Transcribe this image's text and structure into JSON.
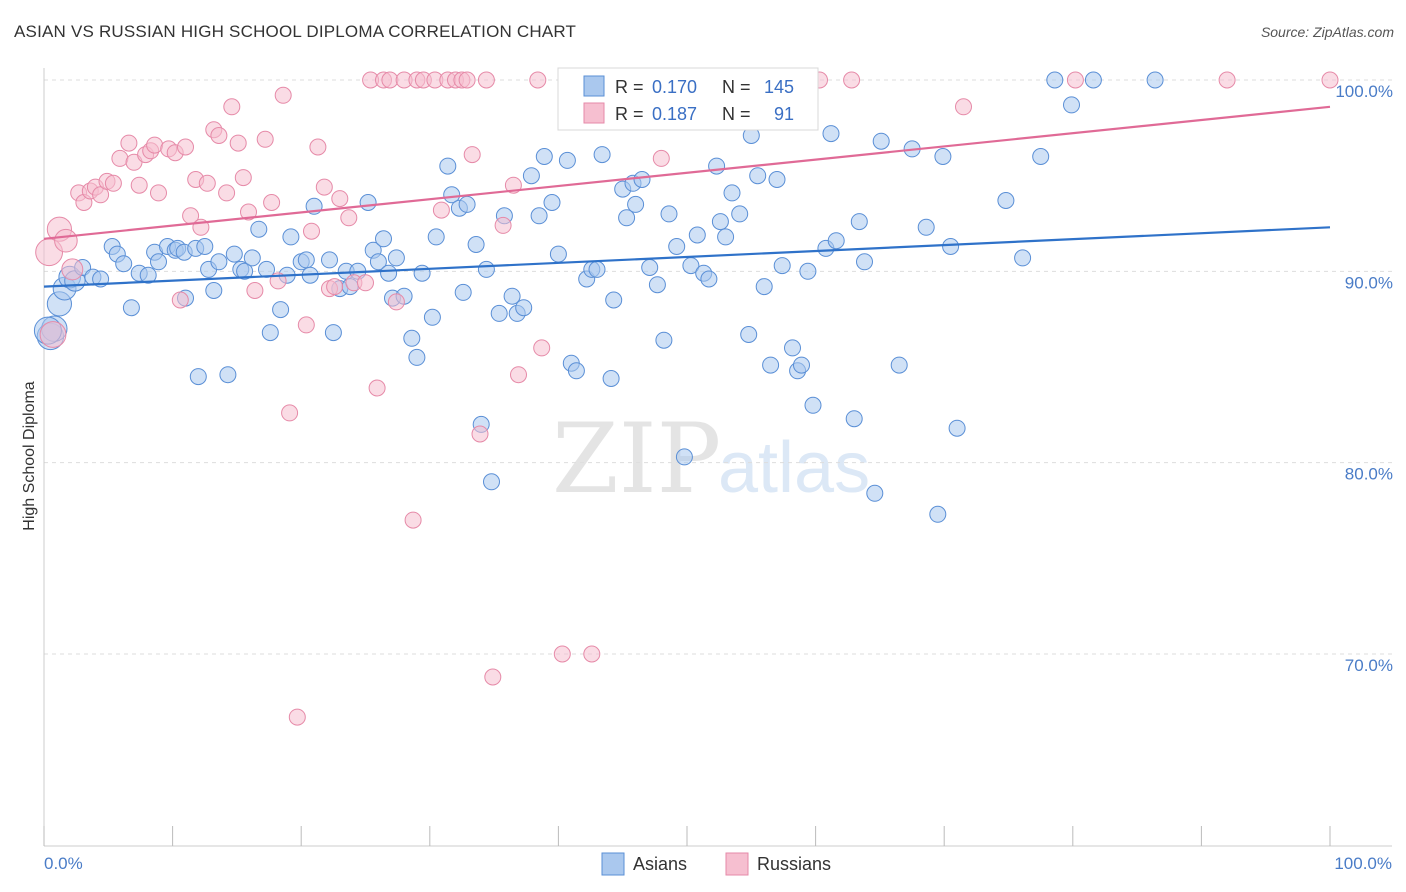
{
  "header": {
    "title": "ASIAN VS RUSSIAN HIGH SCHOOL DIPLOMA CORRELATION CHART",
    "source": "Source: ZipAtlas.com"
  },
  "watermark": {
    "zip": "ZIP",
    "atlas": "atlas"
  },
  "colors": {
    "asians_fill": "#aac8ee",
    "asians_stroke": "#5a8fd6",
    "asians_line": "#2f72c9",
    "russians_fill": "#f6bfd0",
    "russians_stroke": "#e68aa8",
    "russians_line": "#e06a96",
    "tick_label": "#4a7cc7",
    "grid": "#dddddd"
  },
  "legend": {
    "rows": [
      {
        "r_label": "R =",
        "r_value": "0.170",
        "n_label": "N =",
        "n_value": "145"
      },
      {
        "r_label": "R =",
        "r_value": "0.187",
        "n_label": "N =",
        "n_value": "91"
      }
    ],
    "bottom": [
      "Asians",
      "Russians"
    ]
  },
  "chart_data": {
    "type": "scatter",
    "title": "ASIAN VS RUSSIAN HIGH SCHOOL DIPLOMA CORRELATION CHART",
    "xlabel": "",
    "ylabel": "High School Diploma",
    "xlim": [
      0,
      100
    ],
    "ylim": [
      60,
      101.5
    ],
    "x_tick_labels": [
      "0.0%",
      "100.0%"
    ],
    "y_ticks": [
      70,
      80,
      90,
      100
    ],
    "y_tick_labels": [
      "70.0%",
      "80.0%",
      "90.0%",
      "100.0%"
    ],
    "grid": true,
    "legend_position": "top-center",
    "series": [
      {
        "name": "Asians",
        "stats": {
          "R": 0.17,
          "N": 145
        },
        "trend": {
          "x": [
            0,
            100
          ],
          "y": [
            89.2,
            92.3
          ]
        },
        "points": [
          [
            0.5,
            86.6
          ],
          [
            0.8,
            87.0
          ],
          [
            1.2,
            88.3
          ],
          [
            1.6,
            89.1
          ],
          [
            2.0,
            89.7
          ],
          [
            2.4,
            89.5
          ],
          [
            3.0,
            90.2
          ],
          [
            3.8,
            89.7
          ],
          [
            4.4,
            89.6
          ],
          [
            5.3,
            91.3
          ],
          [
            5.7,
            90.9
          ],
          [
            6.2,
            90.4
          ],
          [
            6.8,
            88.1
          ],
          [
            7.4,
            89.9
          ],
          [
            8.1,
            89.8
          ],
          [
            8.6,
            91.0
          ],
          [
            8.9,
            90.5
          ],
          [
            9.6,
            91.3
          ],
          [
            10.2,
            91.1
          ],
          [
            10.4,
            91.2
          ],
          [
            10.9,
            91.0
          ],
          [
            11.0,
            88.6
          ],
          [
            11.8,
            91.2
          ],
          [
            12.0,
            84.5
          ],
          [
            12.5,
            91.3
          ],
          [
            12.8,
            90.1
          ],
          [
            13.2,
            89.0
          ],
          [
            13.6,
            90.5
          ],
          [
            14.3,
            84.6
          ],
          [
            14.8,
            90.9
          ],
          [
            15.3,
            90.1
          ],
          [
            15.6,
            90.0
          ],
          [
            16.2,
            90.7
          ],
          [
            16.7,
            92.2
          ],
          [
            17.3,
            90.1
          ],
          [
            17.6,
            86.8
          ],
          [
            18.4,
            88.0
          ],
          [
            18.9,
            89.8
          ],
          [
            19.2,
            91.8
          ],
          [
            20.0,
            90.5
          ],
          [
            20.4,
            90.6
          ],
          [
            20.7,
            89.8
          ],
          [
            21.0,
            93.4
          ],
          [
            22.2,
            90.6
          ],
          [
            22.5,
            86.8
          ],
          [
            23.0,
            89.1
          ],
          [
            23.5,
            90.0
          ],
          [
            23.8,
            89.2
          ],
          [
            24.4,
            90.0
          ],
          [
            25.2,
            93.6
          ],
          [
            25.6,
            91.1
          ],
          [
            26.0,
            90.5
          ],
          [
            26.4,
            91.7
          ],
          [
            26.8,
            89.9
          ],
          [
            27.1,
            88.6
          ],
          [
            27.4,
            90.7
          ],
          [
            28.0,
            88.7
          ],
          [
            28.6,
            86.5
          ],
          [
            29.0,
            85.5
          ],
          [
            29.4,
            89.9
          ],
          [
            30.2,
            87.6
          ],
          [
            30.5,
            91.8
          ],
          [
            31.4,
            95.5
          ],
          [
            31.7,
            94.0
          ],
          [
            32.3,
            93.3
          ],
          [
            32.6,
            88.9
          ],
          [
            32.9,
            93.5
          ],
          [
            33.6,
            91.4
          ],
          [
            34.0,
            82.0
          ],
          [
            34.4,
            90.1
          ],
          [
            34.8,
            79.0
          ],
          [
            35.4,
            87.8
          ],
          [
            35.8,
            92.9
          ],
          [
            36.4,
            88.7
          ],
          [
            36.8,
            87.8
          ],
          [
            37.3,
            88.1
          ],
          [
            37.9,
            95.0
          ],
          [
            38.5,
            92.9
          ],
          [
            38.9,
            96.0
          ],
          [
            39.5,
            93.6
          ],
          [
            40.0,
            90.9
          ],
          [
            40.7,
            95.8
          ],
          [
            41.0,
            85.2
          ],
          [
            41.4,
            84.8
          ],
          [
            42.2,
            89.6
          ],
          [
            42.6,
            90.1
          ],
          [
            43.0,
            90.1
          ],
          [
            43.4,
            96.1
          ],
          [
            44.1,
            84.4
          ],
          [
            44.3,
            88.5
          ],
          [
            45.0,
            94.3
          ],
          [
            45.3,
            92.8
          ],
          [
            45.8,
            94.6
          ],
          [
            46.0,
            93.5
          ],
          [
            46.5,
            94.8
          ],
          [
            47.1,
            90.2
          ],
          [
            47.7,
            89.3
          ],
          [
            48.2,
            86.4
          ],
          [
            48.6,
            93.0
          ],
          [
            49.2,
            91.3
          ],
          [
            49.8,
            80.3
          ],
          [
            50.3,
            90.3
          ],
          [
            50.8,
            91.9
          ],
          [
            51.3,
            89.9
          ],
          [
            51.7,
            89.6
          ],
          [
            52.3,
            95.5
          ],
          [
            52.6,
            92.6
          ],
          [
            53.0,
            91.8
          ],
          [
            53.5,
            94.1
          ],
          [
            54.1,
            93.0
          ],
          [
            54.8,
            86.7
          ],
          [
            55.0,
            97.1
          ],
          [
            55.5,
            95.0
          ],
          [
            56.0,
            89.2
          ],
          [
            56.5,
            85.1
          ],
          [
            57.0,
            94.8
          ],
          [
            57.4,
            90.3
          ],
          [
            58.2,
            86.0
          ],
          [
            58.6,
            84.8
          ],
          [
            58.9,
            85.1
          ],
          [
            59.4,
            90.0
          ],
          [
            59.8,
            83.0
          ],
          [
            60.8,
            91.2
          ],
          [
            61.2,
            97.2
          ],
          [
            61.6,
            91.6
          ],
          [
            63.0,
            82.3
          ],
          [
            63.4,
            92.6
          ],
          [
            63.8,
            90.5
          ],
          [
            64.6,
            78.4
          ],
          [
            65.1,
            96.8
          ],
          [
            66.5,
            85.1
          ],
          [
            67.5,
            96.4
          ],
          [
            68.6,
            92.3
          ],
          [
            69.5,
            77.3
          ],
          [
            69.9,
            96.0
          ],
          [
            70.5,
            91.3
          ],
          [
            71.0,
            81.8
          ],
          [
            74.8,
            93.7
          ],
          [
            76.1,
            90.7
          ],
          [
            77.5,
            96.0
          ],
          [
            78.6,
            100.0
          ],
          [
            79.9,
            98.7
          ],
          [
            81.6,
            100.0
          ],
          [
            86.4,
            100.0
          ],
          [
            0.3,
            86.9
          ]
        ]
      },
      {
        "name": "Russians",
        "stats": {
          "R": 0.187,
          "N": 91
        },
        "trend": {
          "x": [
            0,
            100
          ],
          "y": [
            91.7,
            98.6
          ]
        },
        "points": [
          [
            0.4,
            91.0
          ],
          [
            0.7,
            86.7
          ],
          [
            1.2,
            92.2
          ],
          [
            1.7,
            91.6
          ],
          [
            2.2,
            90.1
          ],
          [
            2.7,
            94.1
          ],
          [
            3.1,
            93.6
          ],
          [
            3.6,
            94.2
          ],
          [
            4.0,
            94.4
          ],
          [
            4.4,
            94.0
          ],
          [
            4.9,
            94.7
          ],
          [
            5.4,
            94.6
          ],
          [
            5.9,
            95.9
          ],
          [
            6.6,
            96.7
          ],
          [
            7.0,
            95.7
          ],
          [
            7.4,
            94.5
          ],
          [
            7.9,
            96.1
          ],
          [
            8.3,
            96.3
          ],
          [
            8.6,
            96.6
          ],
          [
            8.9,
            94.1
          ],
          [
            9.7,
            96.4
          ],
          [
            10.2,
            96.2
          ],
          [
            10.6,
            88.5
          ],
          [
            11.0,
            96.5
          ],
          [
            11.4,
            92.9
          ],
          [
            11.8,
            94.8
          ],
          [
            12.2,
            92.3
          ],
          [
            12.7,
            94.6
          ],
          [
            13.2,
            97.4
          ],
          [
            13.6,
            97.1
          ],
          [
            14.2,
            94.1
          ],
          [
            14.6,
            98.6
          ],
          [
            15.1,
            96.7
          ],
          [
            15.5,
            94.9
          ],
          [
            15.9,
            93.1
          ],
          [
            16.4,
            89.0
          ],
          [
            17.2,
            96.9
          ],
          [
            17.7,
            93.6
          ],
          [
            18.2,
            89.5
          ],
          [
            18.6,
            99.2
          ],
          [
            19.1,
            82.6
          ],
          [
            19.7,
            66.7
          ],
          [
            20.4,
            87.2
          ],
          [
            20.8,
            92.1
          ],
          [
            21.3,
            96.5
          ],
          [
            21.8,
            94.4
          ],
          [
            22.2,
            89.1
          ],
          [
            22.6,
            89.2
          ],
          [
            23.0,
            93.8
          ],
          [
            23.7,
            92.8
          ],
          [
            24.1,
            89.4
          ],
          [
            25.0,
            89.4
          ],
          [
            25.4,
            100.0
          ],
          [
            25.9,
            83.9
          ],
          [
            26.4,
            100.0
          ],
          [
            26.9,
            100.0
          ],
          [
            27.4,
            88.4
          ],
          [
            28.0,
            100.0
          ],
          [
            28.7,
            77.0
          ],
          [
            29.0,
            100.0
          ],
          [
            29.5,
            100.0
          ],
          [
            30.4,
            100.0
          ],
          [
            30.9,
            93.2
          ],
          [
            31.4,
            100.0
          ],
          [
            32.0,
            100.0
          ],
          [
            32.5,
            100.0
          ],
          [
            32.9,
            100.0
          ],
          [
            33.3,
            96.1
          ],
          [
            33.9,
            81.5
          ],
          [
            34.4,
            100.0
          ],
          [
            34.9,
            68.8
          ],
          [
            35.7,
            92.4
          ],
          [
            36.5,
            94.5
          ],
          [
            36.9,
            84.6
          ],
          [
            38.4,
            100.0
          ],
          [
            38.7,
            86.0
          ],
          [
            40.3,
            70.0
          ],
          [
            41.5,
            100.0
          ],
          [
            42.6,
            70.0
          ],
          [
            43.2,
            100.0
          ],
          [
            48.0,
            95.9
          ],
          [
            49.4,
            100.0
          ],
          [
            51.9,
            100.0
          ],
          [
            53.6,
            100.0
          ],
          [
            56.1,
            100.0
          ],
          [
            60.3,
            100.0
          ],
          [
            62.8,
            100.0
          ],
          [
            71.5,
            98.6
          ],
          [
            80.2,
            100.0
          ],
          [
            92.0,
            100.0
          ],
          [
            100.0,
            100.0
          ]
        ]
      }
    ]
  }
}
